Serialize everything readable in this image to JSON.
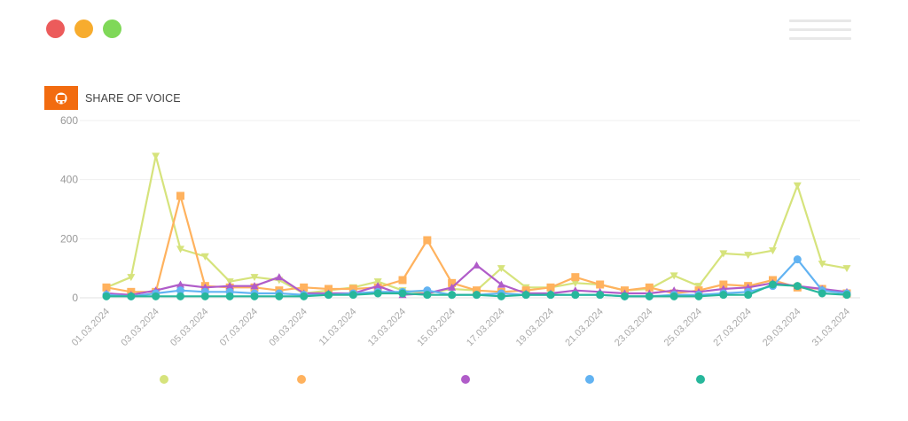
{
  "window": {
    "controls": [
      {
        "name": "close",
        "color": "#ec5b5b"
      },
      {
        "name": "minimize",
        "color": "#f7ac2e"
      },
      {
        "name": "maximize",
        "color": "#7fd858"
      }
    ]
  },
  "card": {
    "title": "SHARE OF VOICE",
    "icon": "media-icon",
    "accent": "#f26b0f"
  },
  "chart_data": {
    "type": "line",
    "title": "",
    "xlabel": "",
    "ylabel": "",
    "ylim": [
      0,
      600
    ],
    "yticks": [
      0,
      200,
      400,
      600
    ],
    "grid": true,
    "legend_position": "bottom",
    "x": [
      "01.03.2024",
      "02.03.2024",
      "03.03.2024",
      "04.03.2024",
      "05.03.2024",
      "06.03.2024",
      "07.03.2024",
      "08.03.2024",
      "09.03.2024",
      "10.03.2024",
      "11.03.2024",
      "12.03.2024",
      "13.03.2024",
      "14.03.2024",
      "15.03.2024",
      "16.03.2024",
      "17.03.2024",
      "18.03.2024",
      "19.03.2024",
      "20.03.2024",
      "21.03.2024",
      "22.03.2024",
      "23.03.2024",
      "24.03.2024",
      "25.03.2024",
      "26.03.2024",
      "27.03.2024",
      "28.03.2024",
      "29.03.2024",
      "30.03.2024",
      "31.03.2024"
    ],
    "x_tick_labels": [
      "01.03.2024",
      "03.03.2024",
      "05.03.2024",
      "07.03.2024",
      "09.03.2024",
      "11.03.2024",
      "13.03.2024",
      "15.03.2024",
      "17.03.2024",
      "19.03.2024",
      "21.03.2024",
      "23.03.2024",
      "25.03.2024",
      "27.03.2024",
      "29.03.2024",
      "31.03.2024"
    ],
    "series": [
      {
        "marker": "triangle-down",
        "color": "#d6e37c",
        "values": [
          35,
          70,
          480,
          165,
          140,
          55,
          70,
          60,
          15,
          25,
          35,
          55,
          25,
          15,
          30,
          25,
          100,
          35,
          35,
          50,
          45,
          25,
          30,
          75,
          40,
          150,
          145,
          160,
          380,
          115,
          100
        ]
      },
      {
        "marker": "square",
        "color": "#ffb25e",
        "values": [
          35,
          20,
          20,
          345,
          40,
          35,
          35,
          25,
          35,
          30,
          30,
          35,
          60,
          195,
          50,
          25,
          20,
          25,
          35,
          70,
          45,
          25,
          35,
          15,
          25,
          45,
          40,
          60,
          35,
          30,
          15
        ]
      },
      {
        "marker": "triangle-up",
        "color": "#b05cc9",
        "values": [
          15,
          10,
          25,
          45,
          35,
          40,
          40,
          70,
          15,
          15,
          15,
          40,
          10,
          15,
          35,
          110,
          45,
          15,
          15,
          25,
          20,
          15,
          15,
          25,
          20,
          30,
          35,
          50,
          40,
          30,
          20
        ]
      },
      {
        "marker": "circle",
        "color": "#62b3f2",
        "values": [
          10,
          5,
          15,
          25,
          20,
          20,
          15,
          15,
          10,
          10,
          15,
          20,
          20,
          25,
          10,
          10,
          15,
          10,
          10,
          10,
          10,
          5,
          5,
          10,
          10,
          15,
          20,
          40,
          130,
          25,
          15
        ]
      },
      {
        "marker": "circle",
        "color": "#27b79b",
        "values": [
          5,
          5,
          5,
          5,
          5,
          5,
          5,
          5,
          5,
          10,
          10,
          15,
          15,
          10,
          10,
          10,
          5,
          10,
          10,
          10,
          10,
          5,
          5,
          5,
          5,
          10,
          10,
          45,
          40,
          15,
          10
        ]
      }
    ],
    "legend_labels": [
      "",
      "",
      "",
      "",
      ""
    ]
  }
}
